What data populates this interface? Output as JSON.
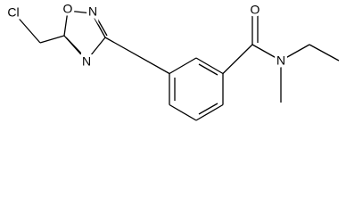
{
  "atoms": [
    {
      "label": "Cl"
    },
    {
      "label": "O"
    },
    {
      "label": "N"
    },
    {
      "label": "N"
    },
    {
      "label": "O"
    },
    {
      "label": "N"
    }
  ]
}
